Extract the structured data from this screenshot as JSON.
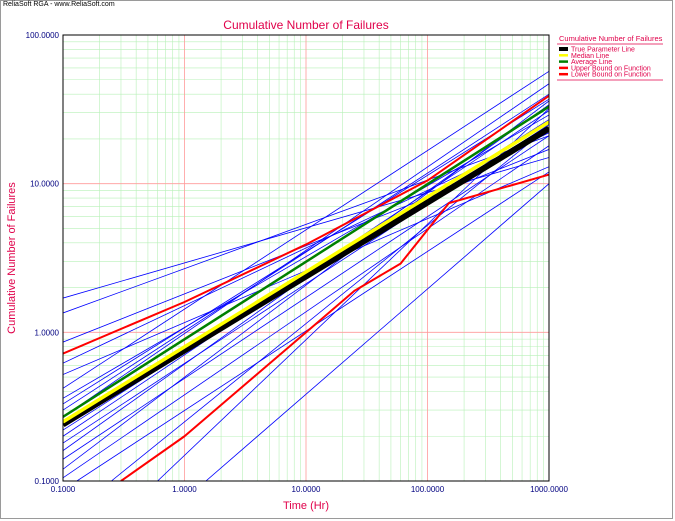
{
  "window": {
    "header": "ReliaSoft RGA - www.ReliaSoft.com"
  },
  "chart_data": {
    "type": "line",
    "title": "Cumulative Number of Failures",
    "xlabel": "Time (Hr)",
    "ylabel": "Cumulative Number of Failures",
    "x_scale": "log",
    "y_scale": "log",
    "xlim": [
      0.1,
      1000
    ],
    "ylim": [
      0.1,
      100
    ],
    "x_ticks": [
      0.1,
      1,
      10,
      100,
      1000
    ],
    "x_tick_labels": [
      "0.1000",
      "1.0000",
      "10.0000",
      "100.0000",
      "1000.0000"
    ],
    "y_ticks": [
      0.1,
      1,
      10,
      100
    ],
    "y_tick_labels": [
      "0.1000",
      "1.0000",
      "10.0000",
      "100.0000"
    ],
    "grid": true,
    "legend": {
      "title": "Cumulative Number of Failures",
      "position": "right",
      "entries": [
        {
          "label": "True Parameter Line",
          "color": "#000000"
        },
        {
          "label": "Median Line",
          "color": "#ffff00"
        },
        {
          "label": "Average Line",
          "color": "#008000"
        },
        {
          "label": "Upper Bound on Function",
          "color": "#ff0000"
        },
        {
          "label": "Lower Bound on Function",
          "color": "#ff0000"
        }
      ]
    },
    "colors": {
      "axis_text": "#000080",
      "title": "#e0004a",
      "major_grid": "#ff9a9a",
      "minor_grid": "#b8f0b8",
      "simulation": "#0000ff"
    },
    "series": [
      {
        "name": "True Parameter Line",
        "color": "#000000",
        "x": [
          0.1,
          1000
        ],
        "y": [
          0.24,
          23.5
        ]
      },
      {
        "name": "Median Line",
        "color": "#ffff00",
        "x": [
          0.1,
          1000
        ],
        "y": [
          0.25,
          26
        ]
      },
      {
        "name": "Average Line",
        "color": "#008000",
        "x": [
          0.1,
          1000
        ],
        "y": [
          0.27,
          33
        ]
      },
      {
        "name": "Upper Bound on Function",
        "color": "#ff0000",
        "x": [
          0.1,
          1,
          10,
          100,
          1000
        ],
        "y": [
          0.72,
          1.6,
          3.9,
          10.5,
          39
        ]
      },
      {
        "name": "Lower Bound on Function",
        "color": "#ff0000",
        "x": [
          0.3,
          1,
          10,
          25,
          60,
          150,
          1000
        ],
        "y": [
          0.1,
          0.2,
          1.0,
          1.9,
          2.9,
          7.4,
          11.5
        ]
      }
    ],
    "simulations": [
      {
        "x": [
          0.1,
          1000
        ],
        "y": [
          1.7,
          15
        ]
      },
      {
        "x": [
          0.1,
          1000
        ],
        "y": [
          1.35,
          21
        ]
      },
      {
        "x": [
          0.1,
          1000
        ],
        "y": [
          0.86,
          17
        ]
      },
      {
        "x": [
          0.1,
          1000
        ],
        "y": [
          0.62,
          22
        ]
      },
      {
        "x": [
          0.1,
          1000
        ],
        "y": [
          0.52,
          13
        ]
      },
      {
        "x": [
          0.1,
          1000
        ],
        "y": [
          0.42,
          57
        ]
      },
      {
        "x": [
          0.1,
          1000
        ],
        "y": [
          0.36,
          29
        ]
      },
      {
        "x": [
          0.1,
          1000
        ],
        "y": [
          0.33,
          37
        ]
      },
      {
        "x": [
          0.1,
          1000
        ],
        "y": [
          0.3,
          40
        ]
      },
      {
        "x": [
          0.1,
          1000
        ],
        "y": [
          0.27,
          47
        ]
      },
      {
        "x": [
          0.1,
          1000
        ],
        "y": [
          0.22,
          27
        ]
      },
      {
        "x": [
          0.1,
          1000
        ],
        "y": [
          0.2,
          31
        ]
      },
      {
        "x": [
          0.1,
          1000
        ],
        "y": [
          0.18,
          25
        ]
      },
      {
        "x": [
          0.1,
          1000
        ],
        "y": [
          0.16,
          34
        ]
      },
      {
        "x": [
          0.1,
          1000
        ],
        "y": [
          0.14,
          21
        ]
      },
      {
        "x": [
          0.1,
          1000
        ],
        "y": [
          0.12,
          36
        ]
      },
      {
        "x": [
          0.1,
          1000
        ],
        "y": [
          0.105,
          18
        ]
      },
      {
        "x": [
          0.13,
          1000
        ],
        "y": [
          0.1,
          12
        ]
      },
      {
        "x": [
          0.25,
          1000
        ],
        "y": [
          0.1,
          24
        ]
      },
      {
        "x": [
          0.6,
          1000
        ],
        "y": [
          0.1,
          32
        ]
      },
      {
        "x": [
          1.5,
          1000
        ],
        "y": [
          0.1,
          10
        ]
      }
    ]
  }
}
